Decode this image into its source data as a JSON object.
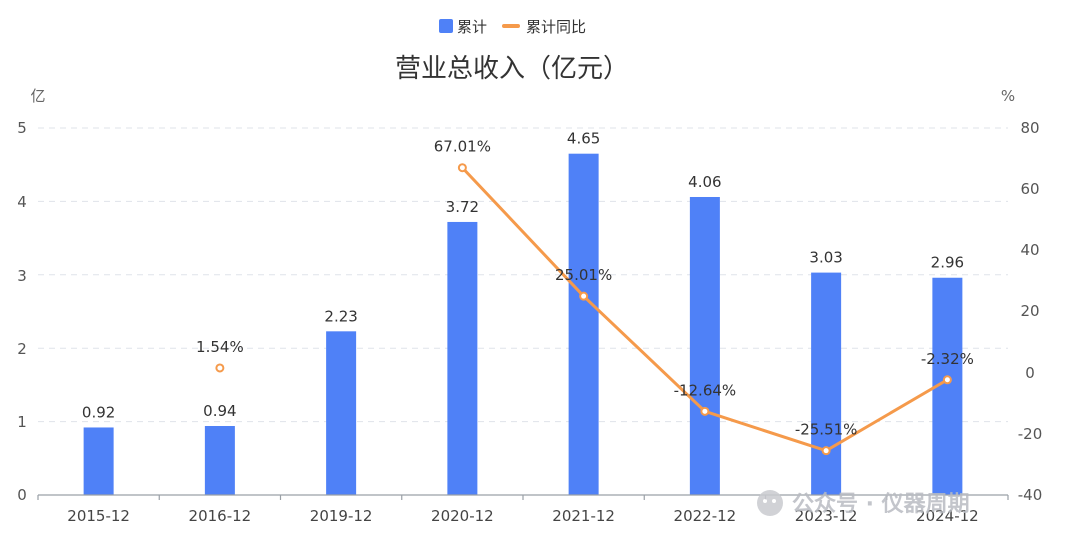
{
  "chart_data": {
    "type": "bar",
    "title": "营业总收入（亿元）",
    "left_unit": "亿",
    "right_unit": "%",
    "categories": [
      "2015-12",
      "2016-12",
      "2019-12",
      "2020-12",
      "2021-12",
      "2022-12",
      "2023-12",
      "2024-12"
    ],
    "series": [
      {
        "name": "累计",
        "type": "bar",
        "axis": "left",
        "color": "#4f81f7",
        "values": [
          0.92,
          0.94,
          2.23,
          3.72,
          4.65,
          4.06,
          3.03,
          2.96
        ],
        "labels": [
          "0.92",
          "0.94",
          "2.23",
          "3.72",
          "4.65",
          "4.06",
          "3.03",
          "2.96"
        ]
      },
      {
        "name": "累计同比",
        "type": "line",
        "axis": "right",
        "color": "#f59a4b",
        "values": [
          null,
          1.54,
          null,
          67.01,
          25.01,
          -12.64,
          -25.51,
          -2.32
        ],
        "labels": [
          "",
          "1.54%",
          "",
          "67.01%",
          "25.01%",
          "-12.64%",
          "-25.51%",
          "-2.32%"
        ]
      }
    ],
    "left_axis": {
      "min": 0,
      "max": 5,
      "ticks": [
        "0",
        "1",
        "2",
        "3",
        "4",
        "5"
      ]
    },
    "right_axis": {
      "min": -40,
      "max": 80,
      "ticks": [
        "-40",
        "-20",
        "0",
        "20",
        "40",
        "60",
        "80"
      ]
    },
    "grid": true,
    "legend_position": "top-center",
    "watermark": "公众号 · 仪器周期"
  }
}
